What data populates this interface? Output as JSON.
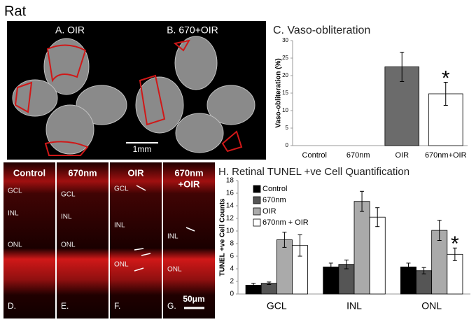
{
  "figure_label": "Rat",
  "flatmounts": {
    "left_label": "A. OIR",
    "right_label": "B. 670+OIR",
    "scale_bar": "1mm"
  },
  "retina": {
    "panels": [
      {
        "title": [
          "Control"
        ],
        "layers": [
          "GCL",
          "INL",
          "ONL"
        ],
        "letter": "D."
      },
      {
        "title": [
          "670nm"
        ],
        "layers": [
          "GCL",
          "INL",
          "ONL"
        ],
        "letter": "E."
      },
      {
        "title": [
          "OIR"
        ],
        "layers": [
          "GCL",
          "INL",
          "ONL"
        ],
        "letter": "F."
      },
      {
        "title": [
          "670nm",
          "+OIR"
        ],
        "layers": [
          "INL",
          "ONL"
        ],
        "letter": "G."
      }
    ],
    "scale_bar": "50μm"
  },
  "chart_data": [
    {
      "type": "bar",
      "title": "C. Vaso-obliteration",
      "y_label": "Vaso-obliteration (%)",
      "categories": [
        "Control",
        "670nm",
        "OIR",
        "670nm+OIR"
      ],
      "values": [
        0,
        0,
        22.5,
        14.8
      ],
      "errors": [
        null,
        null,
        4.2,
        3.3
      ],
      "colors": [
        "#6b6b6b",
        "#6b6b6b",
        "#6b6b6b",
        "#ffffff"
      ],
      "ylim": [
        0,
        30
      ],
      "yticks": [
        0,
        5,
        10,
        15,
        20,
        25,
        30
      ],
      "annotation": "*"
    },
    {
      "type": "bar",
      "title": "H. Retinal TUNEL +ve Cell Quantification",
      "y_label": "TUNEL +ve Cell Counts",
      "categories": [
        "GCL",
        "INL",
        "ONL"
      ],
      "series": [
        {
          "name": "Control",
          "color": "#000000",
          "values": [
            1.4,
            4.3,
            4.3
          ],
          "errors": [
            0.3,
            0.6,
            0.6
          ]
        },
        {
          "name": "670nm",
          "color": "#555555",
          "values": [
            1.7,
            4.7,
            3.7
          ],
          "errors": [
            0.2,
            0.7,
            0.5
          ]
        },
        {
          "name": "OIR",
          "color": "#aaaaaa",
          "values": [
            8.6,
            14.7,
            10.1
          ],
          "errors": [
            1.2,
            1.6,
            1.6
          ]
        },
        {
          "name": "670nm + OIR",
          "color": "#ffffff",
          "values": [
            7.7,
            12.2,
            6.3
          ],
          "errors": [
            1.7,
            1.5,
            1.0
          ]
        }
      ],
      "ylim": [
        0,
        18
      ],
      "yticks": [
        0,
        2,
        4,
        6,
        8,
        10,
        12,
        14,
        16,
        18
      ],
      "legend": "upper-left",
      "annotation": "*"
    }
  ]
}
